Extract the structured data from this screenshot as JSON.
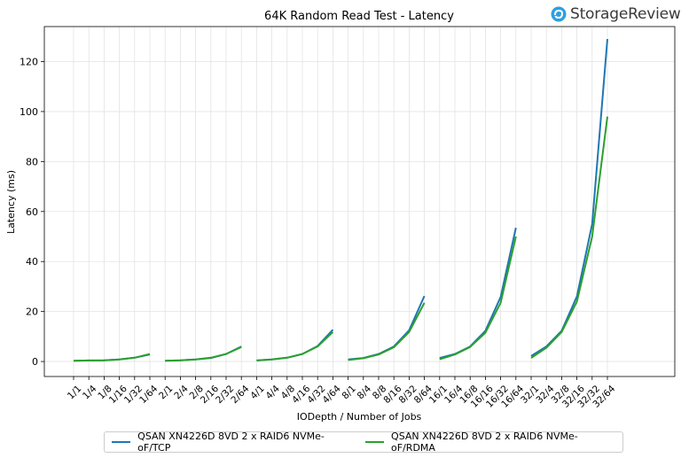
{
  "brand": {
    "name": "StorageReview",
    "logo_icon": "storagereview-logo-icon"
  },
  "chart_data": {
    "type": "line",
    "title": "64K Random Read Test - Latency",
    "xlabel": "IODepth / Number of Jobs",
    "ylabel": "Latency (ms)",
    "ylim": [
      -6,
      134
    ],
    "yticks": [
      0,
      20,
      40,
      60,
      80,
      100,
      120
    ],
    "grid": true,
    "legend_position": "bottom-center",
    "categories": [
      "1/1",
      "1/4",
      "1/8",
      "1/16",
      "1/32",
      "1/64",
      "2/1",
      "2/4",
      "2/8",
      "2/16",
      "2/32",
      "2/64",
      "4/1",
      "4/4",
      "4/8",
      "4/16",
      "4/32",
      "4/64",
      "8/1",
      "8/4",
      "8/8",
      "8/16",
      "8/32",
      "8/64",
      "16/1",
      "16/4",
      "16/8",
      "16/16",
      "16/32",
      "16/64",
      "32/1",
      "32/4",
      "32/8",
      "32/16",
      "32/32",
      "32/64"
    ],
    "series": [
      {
        "name": "QSAN XN4226D 8VD 2 x RAID6 NVMe-oF/TCP",
        "color": "#1f77b4",
        "groups": [
          [
            0.3,
            0.4,
            0.5,
            0.8,
            1.5,
            2.8
          ],
          [
            0.3,
            0.5,
            0.8,
            1.4,
            3.0,
            6.0
          ],
          [
            0.4,
            0.8,
            1.5,
            3.0,
            6.2,
            12.7
          ],
          [
            0.8,
            1.4,
            3.0,
            6.0,
            12.5,
            26.2
          ],
          [
            1.4,
            3.0,
            6.0,
            12.3,
            25.8,
            53.5
          ],
          [
            2.2,
            6.0,
            12.3,
            26.0,
            55.0,
            129.0
          ]
        ]
      },
      {
        "name": "QSAN XN4226D 8VD 2 x RAID6 NVMe-oF/RDMA",
        "color": "#2ca02c",
        "groups": [
          [
            0.3,
            0.4,
            0.5,
            0.8,
            1.5,
            3.0
          ],
          [
            0.3,
            0.5,
            0.8,
            1.5,
            3.0,
            5.8
          ],
          [
            0.4,
            0.8,
            1.5,
            3.0,
            6.0,
            11.8
          ],
          [
            0.6,
            1.3,
            2.8,
            5.7,
            11.8,
            23.5
          ],
          [
            0.9,
            2.8,
            5.8,
            11.5,
            23.5,
            50.0
          ],
          [
            1.4,
            5.5,
            11.8,
            24.0,
            50.0,
            98.0
          ]
        ]
      }
    ]
  }
}
